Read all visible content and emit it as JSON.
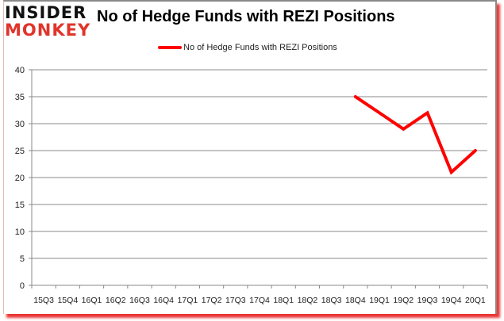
{
  "logo": {
    "line1": "INSIDER",
    "line2": "MONKEY"
  },
  "header": {
    "title": "No of Hedge Funds with REZI Positions"
  },
  "legend": {
    "label": "No of Hedge Funds with REZI Positions",
    "color": "#ff0000"
  },
  "colors": {
    "line": "#ff0000",
    "grid": "#888888",
    "frame_shadow": "#e61414"
  },
  "chart_data": {
    "type": "line",
    "title": "No of Hedge Funds with REZI Positions",
    "xlabel": "",
    "ylabel": "",
    "ylim": [
      0,
      40
    ],
    "yticks": [
      0,
      5,
      10,
      15,
      20,
      25,
      30,
      35,
      40
    ],
    "grid": true,
    "legend_position": "top",
    "categories": [
      "15Q3",
      "15Q4",
      "16Q1",
      "16Q2",
      "16Q3",
      "16Q4",
      "17Q1",
      "17Q2",
      "17Q3",
      "17Q4",
      "18Q1",
      "18Q2",
      "18Q3",
      "18Q4",
      "19Q1",
      "19Q2",
      "19Q3",
      "19Q4",
      "20Q1"
    ],
    "series": [
      {
        "name": "No of Hedge Funds with REZI Positions",
        "color": "#ff0000",
        "values": [
          null,
          null,
          null,
          null,
          null,
          null,
          null,
          null,
          null,
          null,
          null,
          null,
          null,
          35,
          32,
          29,
          32,
          21,
          25
        ]
      }
    ]
  }
}
